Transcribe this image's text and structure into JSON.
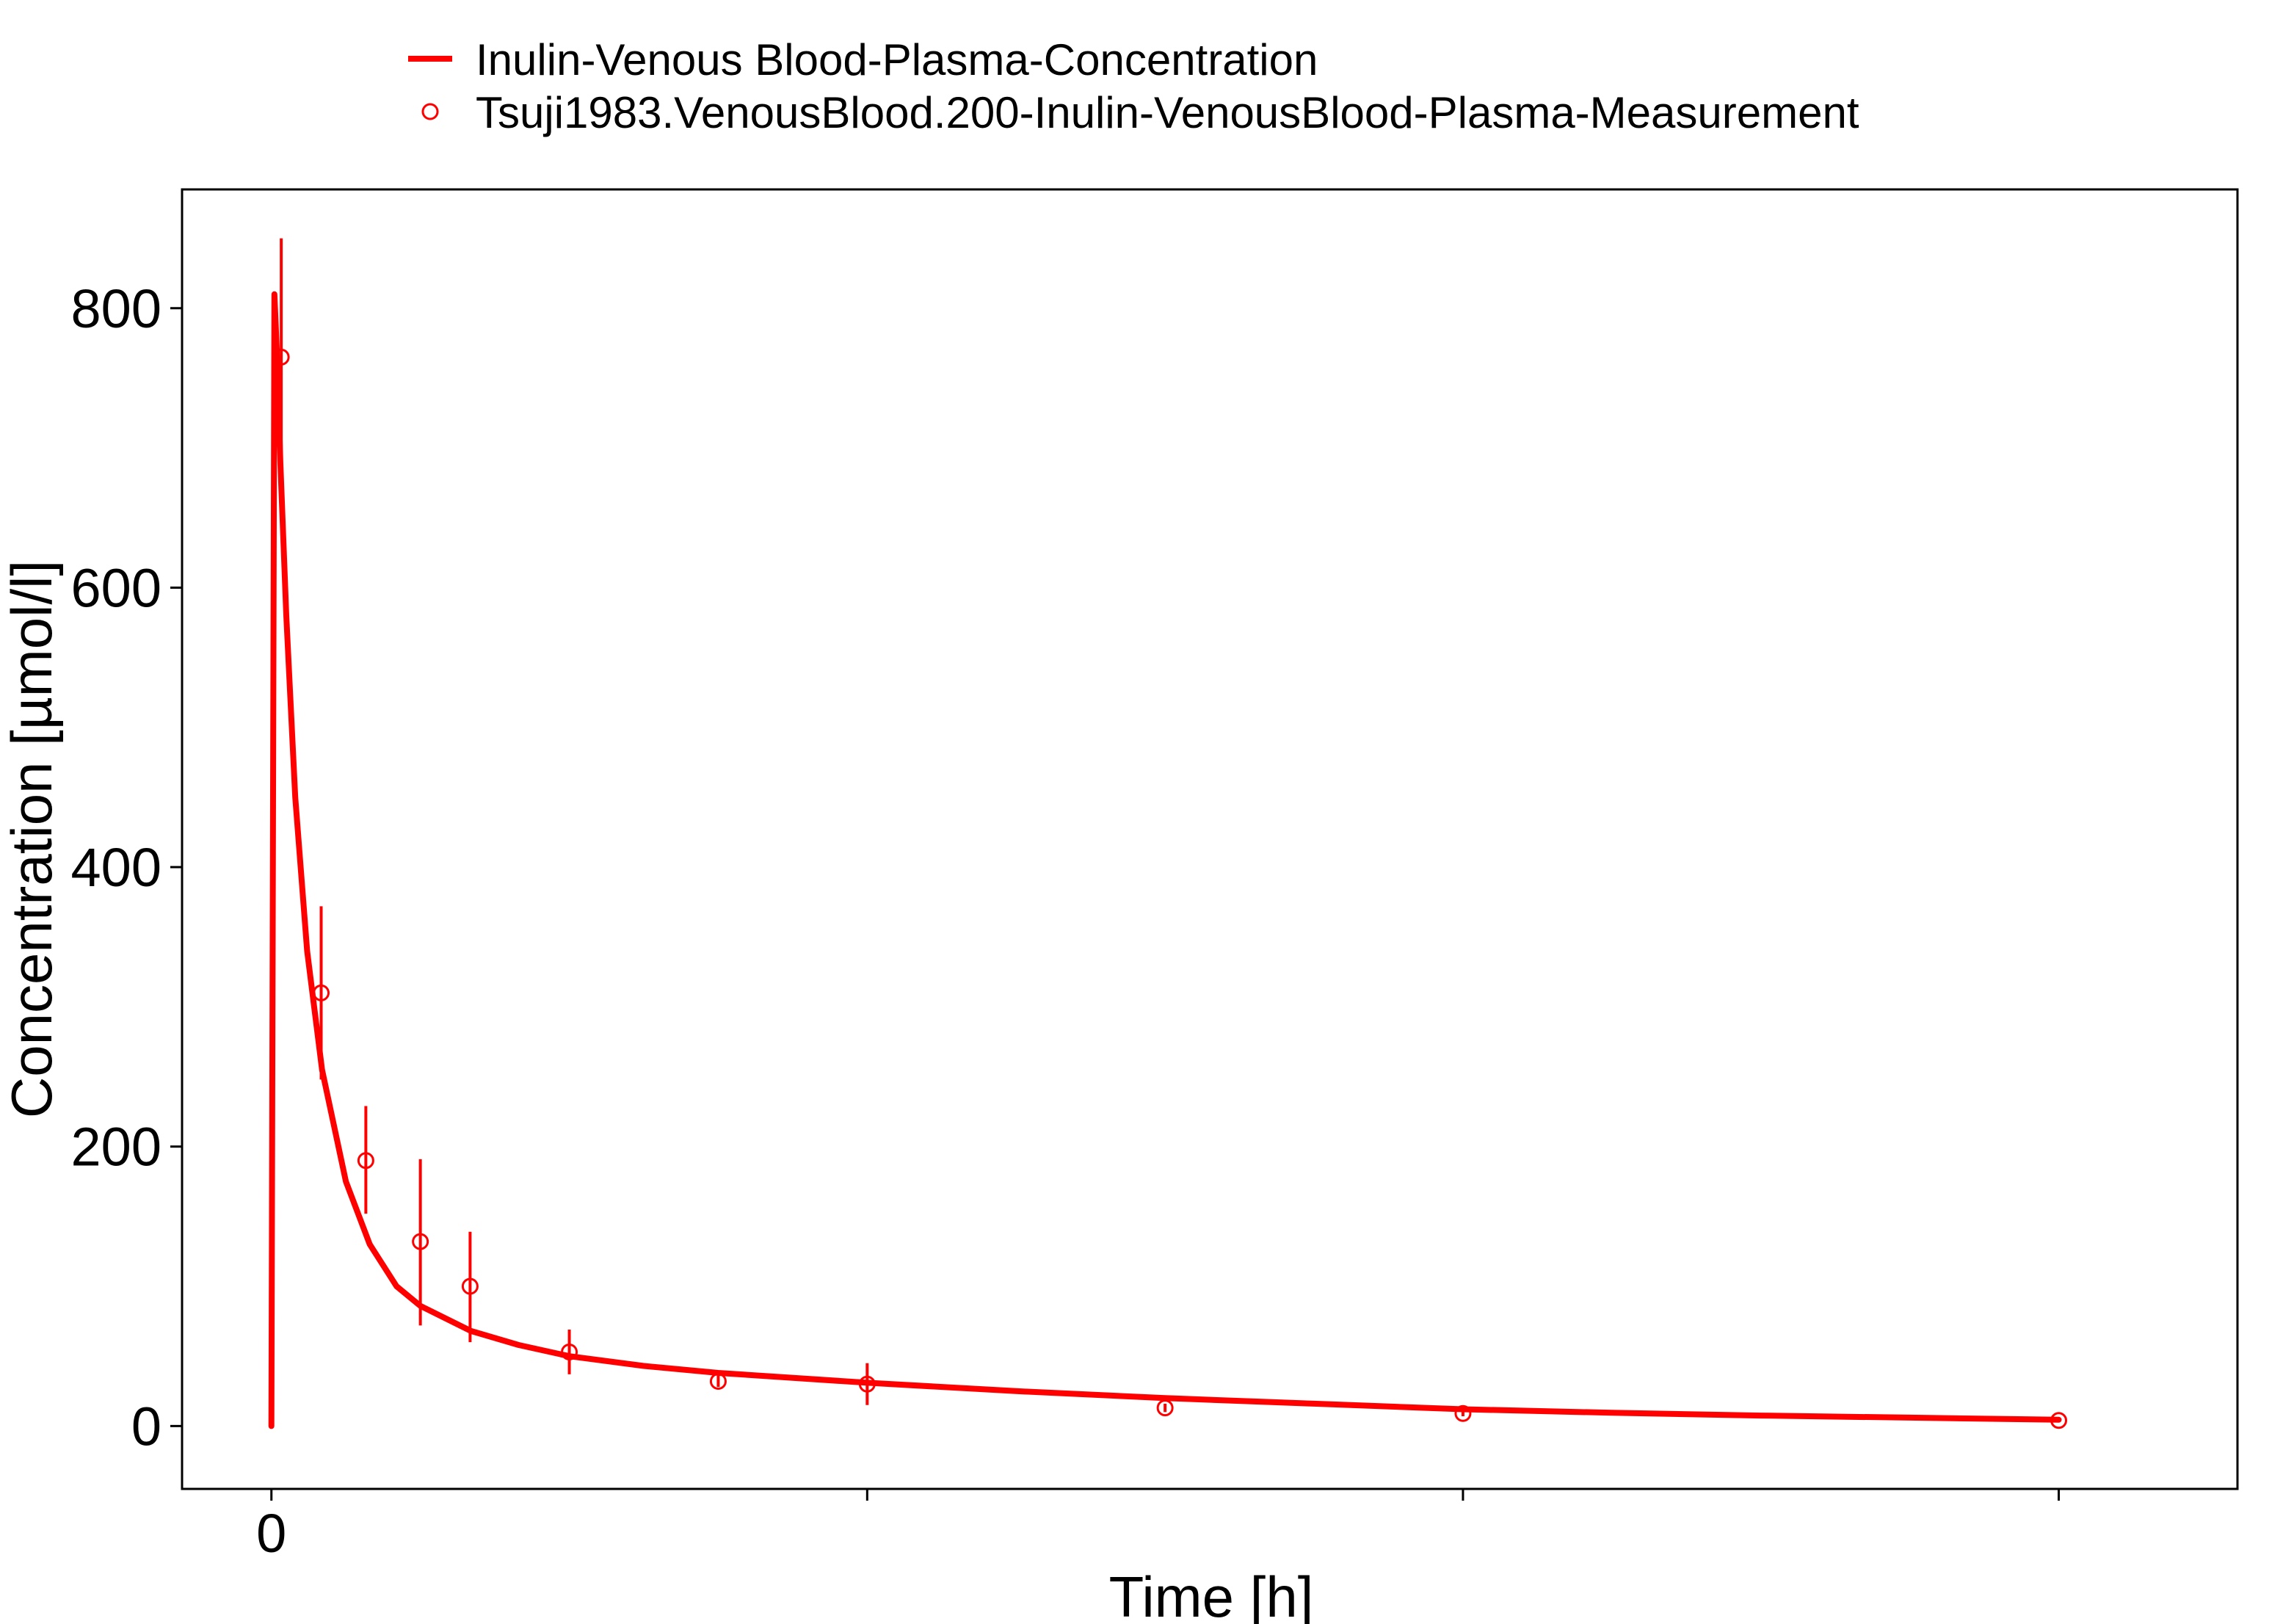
{
  "colors": {
    "series": "#ff0000",
    "axis": "#000000",
    "background": "#ffffff"
  },
  "chart_data": {
    "type": "line",
    "title": "",
    "xlabel": "Time [h]",
    "ylabel": "Concentration [µmol/l]",
    "xlim": [
      -0.3,
      6.6
    ],
    "ylim": [
      -45,
      885
    ],
    "x_ticks": [
      0,
      2,
      4,
      6
    ],
    "x_tick_labels": [
      "0",
      "",
      "",
      ""
    ],
    "y_ticks": [
      0,
      200,
      400,
      600,
      800
    ],
    "y_tick_labels": [
      "0",
      "200",
      "400",
      "600",
      "800"
    ],
    "grid": false,
    "legend_position": "top",
    "series": [
      {
        "name": "Inulin-Venous Blood-Plasma-Concentration",
        "kind": "line",
        "color": "#ff0000",
        "x": [
          0,
          0.01,
          0.02,
          0.03,
          0.05,
          0.08,
          0.12,
          0.17,
          0.25,
          0.33,
          0.42,
          0.5,
          0.67,
          0.83,
          1.0,
          1.25,
          1.5,
          2.0,
          2.5,
          3.0,
          3.5,
          4.0,
          4.5,
          5.0,
          5.5,
          6.0
        ],
        "y": [
          0,
          810,
          760,
          690,
          580,
          450,
          340,
          255,
          175,
          130,
          100,
          86,
          68,
          58,
          50,
          43,
          38,
          31,
          25,
          20,
          16,
          12,
          9.5,
          7.5,
          6,
          4.5
        ]
      },
      {
        "name": "Tsuji1983.VenousBlood.200-Inulin-VenousBlood-Plasma-Measurement",
        "kind": "scatter",
        "color": "#ff0000",
        "x": [
          0.033,
          0.167,
          0.317,
          0.5,
          0.667,
          1.0,
          1.5,
          2.0,
          3.0,
          4.0,
          6.0
        ],
        "y": [
          765,
          310,
          190,
          132,
          100,
          53,
          32,
          30,
          13,
          9,
          4
        ],
        "error_low": [
          680,
          248,
          152,
          72,
          60,
          37,
          28,
          15,
          10,
          7,
          3
        ],
        "error_high": [
          850,
          372,
          229,
          191,
          139,
          69,
          36,
          45,
          16,
          11,
          5
        ]
      }
    ]
  }
}
